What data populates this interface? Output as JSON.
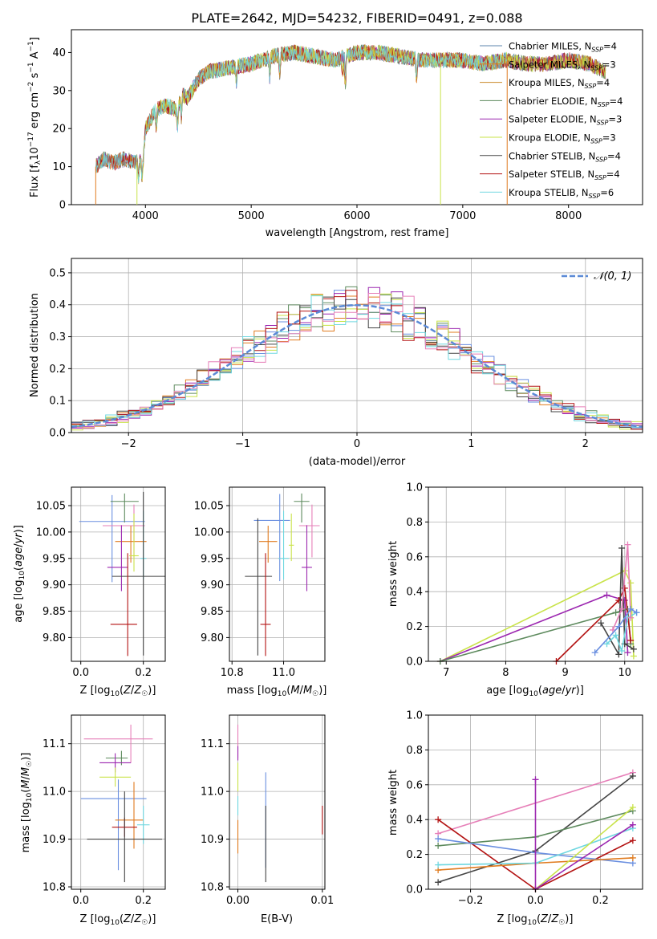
{
  "figure_title": "PLATE=2642, MJD=54232, FIBERID=0491, z=0.088",
  "colors": {
    "c1": "#5e86ad",
    "c2": "#8e86d6",
    "c3": "#e07b1f",
    "c4": "#5d8a5d",
    "c5": "#9c27b0",
    "c6": "#c9e34a",
    "c7": "#444444",
    "c8": "#b31212",
    "c9": "#6fd7e0",
    "c10": "#6a8fe0",
    "c11": "#e67fb8"
  },
  "chart_data": [
    {
      "id": "spectrum",
      "type": "line",
      "title": "PLATE=2642, MJD=54232, FIBERID=0491, z=0.088",
      "xlabel": "wavelength [Angstrom, rest frame]",
      "ylabel": "Flux [f_λ 10^-17 erg cm^-2 s^-1 A^-1]",
      "xlim": [
        3300,
        8700
      ],
      "ylim": [
        0,
        46
      ],
      "xticks": [
        "4000",
        "5000",
        "6000",
        "7000",
        "8000"
      ],
      "yticks": [
        "0",
        "10",
        "20",
        "30",
        "40"
      ],
      "grid": false,
      "legend": "top-right",
      "continuum": {
        "x": [
          3530,
          3600,
          3700,
          3800,
          3900,
          3980,
          4000,
          4100,
          4200,
          4300,
          4350,
          4400,
          4500,
          4600,
          4800,
          5000,
          5200,
          5400,
          5600,
          5800,
          6000,
          6200,
          6400,
          6600,
          6800,
          7000,
          7200,
          7400,
          7600,
          7800,
          8000,
          8200,
          8350
        ],
        "y": [
          10,
          12,
          11,
          12,
          11,
          12,
          20,
          25,
          26,
          25,
          29,
          28,
          33,
          35,
          36,
          37,
          39,
          40,
          39,
          38,
          40,
          40,
          39,
          38,
          38,
          38,
          37,
          38,
          37,
          37,
          38,
          37,
          35
        ]
      },
      "series": [
        {
          "name": "Chabrier MILES, N_SSP=4",
          "color": "#5e86ad"
        },
        {
          "name": "Salpeter MILES, N_SSP=3",
          "color": "#e07b1f"
        },
        {
          "name": "Kroupa MILES, N_SSP=4",
          "color": "#c98a2a"
        },
        {
          "name": "Chabrier ELODIE, N_SSP=4",
          "color": "#5d8a5d"
        },
        {
          "name": "Salpeter ELODIE, N_SSP=3",
          "color": "#9c27b0"
        },
        {
          "name": "Kroupa ELODIE, N_SSP=3",
          "color": "#c9e34a"
        },
        {
          "name": "Chabrier STELIB, N_SSP=4",
          "color": "#444444"
        },
        {
          "name": "Salpeter STELIB, N_SSP=4",
          "color": "#b31212"
        },
        {
          "name": "Kroupa STELIB, N_SSP=6",
          "color": "#6fd7e0"
        }
      ],
      "cutoffs": [
        {
          "x": 3530,
          "color": "#e07b1f"
        },
        {
          "x": 3920,
          "color": "#c9e34a"
        },
        {
          "x": 6790,
          "color": "#c9e34a"
        },
        {
          "x": 7420,
          "color": "#e07b1f"
        }
      ]
    },
    {
      "id": "residuals",
      "type": "line",
      "xlabel": "(data-model)/error",
      "ylabel": "Normed distribution",
      "xlim": [
        -2.5,
        2.5
      ],
      "ylim": [
        0,
        0.545
      ],
      "xticks": [
        "−2",
        "−1",
        "0",
        "1",
        "2"
      ],
      "yticks": [
        "0.0",
        "0.1",
        "0.2",
        "0.3",
        "0.4",
        "0.5"
      ],
      "grid": true,
      "legend": "top-right",
      "legend_label": "𝒩(0, 1)",
      "series": [
        {
          "color": "#6a8fe0"
        },
        {
          "color": "#e07b1f"
        },
        {
          "color": "#5d8a5d"
        },
        {
          "color": "#9c27b0"
        },
        {
          "color": "#c9e34a"
        },
        {
          "color": "#444444"
        },
        {
          "color": "#b31212"
        },
        {
          "color": "#6fd7e0"
        },
        {
          "color": "#e67fb8"
        }
      ]
    },
    {
      "id": "age-vs-z",
      "type": "scatter",
      "xlabel": "Z [log10(Z/Z☉)]",
      "ylabel": "age [log10(age/yr)]",
      "xlim": [
        -0.03,
        0.27
      ],
      "ylim": [
        9.755,
        10.085
      ],
      "xticks": [
        "0.0",
        "0.2"
      ],
      "yticks": [
        "9.80",
        "9.85",
        "9.90",
        "9.95",
        "10.00",
        "10.05"
      ],
      "grid": true,
      "points": [
        {
          "x": 0.1,
          "y": 10.02,
          "xerr": [
            0.105,
            0.105
          ],
          "yerr": [
            0.115,
            0.05
          ],
          "color": "#6a8fe0"
        },
        {
          "x": 0.14,
          "y": 10.058,
          "xerr": [
            0.045,
            0.045
          ],
          "yerr": [
            0.04,
            0.015
          ],
          "color": "#5d8a5d"
        },
        {
          "x": 0.17,
          "y": 10.012,
          "xerr": [
            0.1,
            0.035
          ],
          "yerr": [
            0.06,
            0.04
          ],
          "color": "#e67fb8"
        },
        {
          "x": 0.16,
          "y": 9.982,
          "xerr": [
            0.05,
            0.05
          ],
          "yerr": [
            0.04,
            0.03
          ],
          "color": "#e07b1f"
        },
        {
          "x": 0.2,
          "y": 9.95,
          "xerr": [
            0.01,
            0.01
          ],
          "yerr": [
            0.04,
            0.09
          ],
          "color": "#6fd7e0"
        },
        {
          "x": 0.17,
          "y": 9.955,
          "xerr": [
            0.015,
            0.015
          ],
          "yerr": [
            0.03,
            0.08
          ],
          "color": "#c9e34a"
        },
        {
          "x": 0.13,
          "y": 9.933,
          "xerr": [
            0.045,
            0.02
          ],
          "yerr": [
            0.045,
            0.08
          ],
          "color": "#9c27b0"
        },
        {
          "x": 0.2,
          "y": 9.916,
          "xerr": [
            0.1,
            0.07
          ],
          "yerr": [
            0.15,
            0.16
          ],
          "color": "#444444"
        },
        {
          "x": 0.15,
          "y": 9.825,
          "xerr": [
            0.055,
            0.03
          ],
          "yerr": [
            0.06,
            0.135
          ],
          "color": "#b31212"
        }
      ]
    },
    {
      "id": "age-vs-mass",
      "type": "scatter",
      "xlabel": "mass [log10(M/M☉)]",
      "ylabel": "",
      "xlim": [
        10.79,
        11.16
      ],
      "ylim": [
        9.755,
        10.085
      ],
      "xticks": [
        "10.8",
        "11.0"
      ],
      "yticks": [
        "9.80",
        "9.85",
        "9.90",
        "9.95",
        "10.00",
        "10.05"
      ],
      "grid": true,
      "points": [
        {
          "x": 10.985,
          "y": 10.022,
          "xerr": [
            0.1,
            0.04
          ],
          "yerr": [
            0.115,
            0.05
          ],
          "color": "#6a8fe0"
        },
        {
          "x": 11.07,
          "y": 10.058,
          "xerr": [
            0.03,
            0.03
          ],
          "yerr": [
            0.04,
            0.015
          ],
          "color": "#5d8a5d"
        },
        {
          "x": 11.11,
          "y": 10.012,
          "xerr": [
            0.05,
            0.03
          ],
          "yerr": [
            0.06,
            0.04
          ],
          "color": "#e67fb8"
        },
        {
          "x": 10.94,
          "y": 9.982,
          "xerr": [
            0.035,
            0.035
          ],
          "yerr": [
            0.04,
            0.03
          ],
          "color": "#e07b1f"
        },
        {
          "x": 11.0,
          "y": 9.95,
          "xerr": [
            0.02,
            0.02
          ],
          "yerr": [
            0.04,
            0.09
          ],
          "color": "#6fd7e0"
        },
        {
          "x": 11.03,
          "y": 9.975,
          "xerr": [
            0.01,
            0.01
          ],
          "yerr": [
            0.03,
            0.06
          ],
          "color": "#c9e34a"
        },
        {
          "x": 11.09,
          "y": 9.933,
          "xerr": [
            0.02,
            0.02
          ],
          "yerr": [
            0.045,
            0.08
          ],
          "color": "#9c27b0"
        },
        {
          "x": 10.9,
          "y": 9.916,
          "xerr": [
            0.05,
            0.055
          ],
          "yerr": [
            0.15,
            0.11
          ],
          "color": "#444444"
        },
        {
          "x": 10.93,
          "y": 9.825,
          "xerr": [
            0.02,
            0.02
          ],
          "yerr": [
            0.06,
            0.135
          ],
          "color": "#b31212"
        }
      ]
    },
    {
      "id": "weight-vs-age",
      "type": "line",
      "xlabel": "age  [log10(age/yr)]",
      "ylabel": "mass weight",
      "xlim": [
        6.7,
        10.3
      ],
      "ylim": [
        0,
        1.0
      ],
      "xticks": [
        "7",
        "8",
        "9",
        "10"
      ],
      "yticks": [
        "0.0",
        "0.2",
        "0.4",
        "0.6",
        "0.8",
        "1.0"
      ],
      "grid": true,
      "series": [
        {
          "color": "#c9e34a",
          "x": [
            6.9,
            10.0,
            10.1,
            10.15
          ],
          "y": [
            0.0,
            0.52,
            0.45,
            0.03
          ]
        },
        {
          "color": "#9c27b0",
          "x": [
            6.9,
            9.7,
            10.0,
            10.05
          ],
          "y": [
            0.0,
            0.38,
            0.35,
            0.05
          ]
        },
        {
          "color": "#5d8a5d",
          "x": [
            6.9,
            9.85,
            10.05,
            10.1
          ],
          "y": [
            0.0,
            0.28,
            0.3,
            0.1
          ]
        },
        {
          "color": "#b31212",
          "x": [
            8.85,
            9.9,
            10.0,
            10.1
          ],
          "y": [
            0.0,
            0.35,
            0.42,
            0.12
          ]
        },
        {
          "color": "#444444",
          "x": [
            9.6,
            9.9,
            9.95,
            10.0,
            10.15
          ],
          "y": [
            0.22,
            0.04,
            0.65,
            0.1,
            0.07
          ]
        },
        {
          "color": "#6fd7e0",
          "x": [
            9.7,
            9.85,
            9.95,
            10.05,
            10.2
          ],
          "y": [
            0.1,
            0.15,
            0.06,
            0.25,
            0.28
          ]
        },
        {
          "color": "#e67fb8",
          "x": [
            9.8,
            9.95,
            10.05,
            10.1
          ],
          "y": [
            0.18,
            0.3,
            0.67,
            0.25
          ]
        },
        {
          "color": "#6a8fe0",
          "x": [
            9.5,
            9.9,
            10.1,
            10.2
          ],
          "y": [
            0.05,
            0.2,
            0.3,
            0.28
          ]
        }
      ]
    },
    {
      "id": "mass-vs-z",
      "type": "scatter",
      "xlabel": "Z [log10(Z/Z☉)]",
      "ylabel": "mass [log10(M/M☉)]",
      "xlim": [
        -0.03,
        0.27
      ],
      "ylim": [
        10.795,
        11.16
      ],
      "xticks": [
        "0.0",
        "0.2"
      ],
      "yticks": [
        "10.8",
        "10.9",
        "11.0",
        "11.1"
      ],
      "grid": true,
      "points": [
        {
          "x": 0.16,
          "y": 11.11,
          "xerr": [
            0.15,
            0.07
          ],
          "yerr": [
            0.05,
            0.03
          ],
          "color": "#e67fb8"
        },
        {
          "x": 0.13,
          "y": 11.07,
          "xerr": [
            0.05,
            0.02
          ],
          "yerr": [
            0.015,
            0.015
          ],
          "color": "#5d8a5d"
        },
        {
          "x": 0.11,
          "y": 11.06,
          "xerr": [
            0.05,
            0.05
          ],
          "yerr": [
            0.02,
            0.02
          ],
          "color": "#9c27b0"
        },
        {
          "x": 0.11,
          "y": 11.03,
          "xerr": [
            0.05,
            0.05
          ],
          "yerr": [
            0.02,
            0.02
          ],
          "color": "#c9e34a"
        },
        {
          "x": 0.12,
          "y": 10.985,
          "xerr": [
            0.12,
            0.09
          ],
          "yerr": [
            0.15,
            0.04
          ],
          "color": "#6a8fe0"
        },
        {
          "x": 0.17,
          "y": 10.94,
          "xerr": [
            0.06,
            0.03
          ],
          "yerr": [
            0.06,
            0.08
          ],
          "color": "#e07b1f"
        },
        {
          "x": 0.2,
          "y": 10.93,
          "xerr": [
            0.02,
            0.02
          ],
          "yerr": [
            0.04,
            0.04
          ],
          "color": "#6fd7e0"
        },
        {
          "x": 0.14,
          "y": 10.925,
          "xerr": [
            0.04,
            0.04
          ],
          "yerr": [
            0.02,
            0.02
          ],
          "color": "#b31212"
        },
        {
          "x": 0.14,
          "y": 10.9,
          "xerr": [
            0.12,
            0.12
          ],
          "yerr": [
            0.09,
            0.1
          ],
          "color": "#444444"
        }
      ]
    },
    {
      "id": "mass-vs-ebv",
      "type": "scatter",
      "xlabel": "E(B-V)",
      "ylabel": "",
      "xlim": [
        -0.001,
        0.0103
      ],
      "ylim": [
        10.795,
        11.16
      ],
      "xticks": [
        "0.00",
        "0.01"
      ],
      "yticks": [
        "10.8",
        "10.9",
        "11.0",
        "11.1"
      ],
      "grid": true,
      "points": [
        {
          "x": 0.0,
          "y": 11.11,
          "yerr": [
            0.04,
            0.03
          ],
          "color": "#e67fb8"
        },
        {
          "x": 0.0,
          "y": 11.08,
          "yerr": [
            0.015,
            0.015
          ],
          "color": "#9c27b0"
        },
        {
          "x": 0.0,
          "y": 11.03,
          "yerr": [
            0.03,
            0.03
          ],
          "color": "#c9e34a"
        },
        {
          "x": 0.0,
          "y": 10.92,
          "yerr": [
            0.05,
            0.02
          ],
          "color": "#e07b1f"
        },
        {
          "x": 0.0,
          "y": 10.97,
          "yerr": [
            0.02,
            0.02
          ],
          "color": "#6fd7e0"
        },
        {
          "x": 0.0033,
          "y": 10.94,
          "yerr": [
            0.1,
            0.1
          ],
          "color": "#6a8fe0"
        },
        {
          "x": 0.0033,
          "y": 10.9,
          "yerr": [
            0.09,
            0.07
          ],
          "color": "#444444"
        },
        {
          "x": 0.01,
          "y": 10.94,
          "yerr": [
            0.03,
            0.03
          ],
          "color": "#b31212"
        }
      ]
    },
    {
      "id": "weight-vs-z",
      "type": "line",
      "xlabel": "Z [log10(Z/Z☉)]",
      "ylabel": "mass weight",
      "xlim": [
        -0.33,
        0.33
      ],
      "ylim": [
        0,
        1.0
      ],
      "xticks": [
        "−0.2",
        "0.0",
        "0.2"
      ],
      "yticks": [
        "0.0",
        "0.2",
        "0.4",
        "0.6",
        "0.8",
        "1.0"
      ],
      "grid": true,
      "series": [
        {
          "color": "#e67fb8",
          "x": [
            -0.3,
            0.3
          ],
          "y": [
            0.32,
            0.67
          ]
        },
        {
          "color": "#444444",
          "x": [
            -0.3,
            0.0,
            0.3
          ],
          "y": [
            0.04,
            0.22,
            0.65
          ]
        },
        {
          "color": "#b31212",
          "x": [
            -0.3,
            0.0,
            0.3
          ],
          "y": [
            0.4,
            0.0,
            0.28
          ]
        },
        {
          "color": "#5d8a5d",
          "x": [
            -0.3,
            0.0,
            0.3
          ],
          "y": [
            0.25,
            0.3,
            0.45
          ]
        },
        {
          "color": "#6a8fe0",
          "x": [
            -0.3,
            0.0,
            0.3
          ],
          "y": [
            0.29,
            0.21,
            0.15
          ]
        },
        {
          "color": "#e07b1f",
          "x": [
            -0.3,
            0.0,
            0.3
          ],
          "y": [
            0.11,
            0.15,
            0.18
          ]
        },
        {
          "color": "#6fd7e0",
          "x": [
            -0.3,
            0.0,
            0.3
          ],
          "y": [
            0.14,
            0.15,
            0.35
          ]
        },
        {
          "color": "#c9e34a",
          "x": [
            0.0,
            0.3
          ],
          "y": [
            0.0,
            0.47
          ]
        },
        {
          "color": "#9c27b0",
          "x": [
            0.0,
            0.0,
            0.3
          ],
          "y": [
            0.63,
            0.0,
            0.37
          ]
        }
      ]
    }
  ]
}
